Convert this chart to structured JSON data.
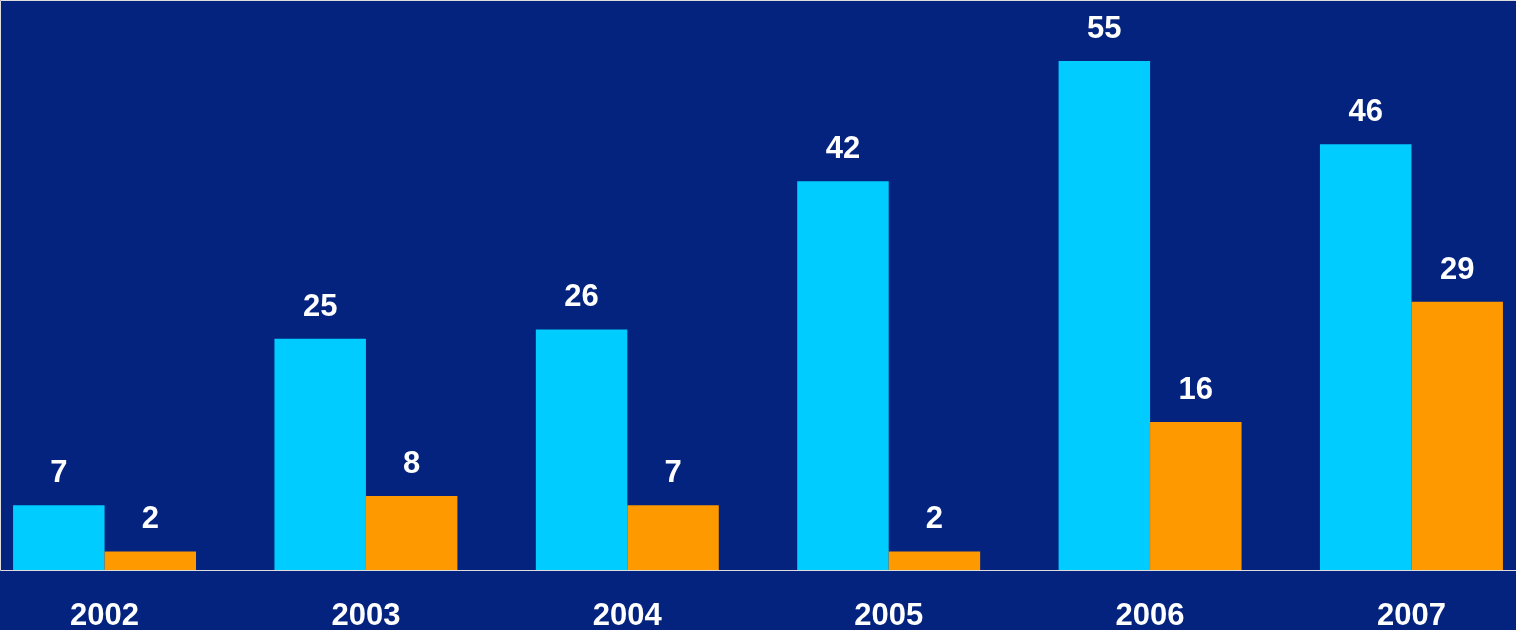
{
  "chart_data": {
    "type": "bar",
    "categories": [
      "2002",
      "2003",
      "2004",
      "2005",
      "2006",
      "2007"
    ],
    "series": [
      {
        "color": "#00ccff",
        "values": [
          7,
          25,
          26,
          42,
          55,
          46
        ]
      },
      {
        "color": "#ff9900",
        "values": [
          2,
          8,
          7,
          2,
          16,
          29
        ]
      }
    ],
    "data_labels": true,
    "grid": false,
    "legend": false
  }
}
